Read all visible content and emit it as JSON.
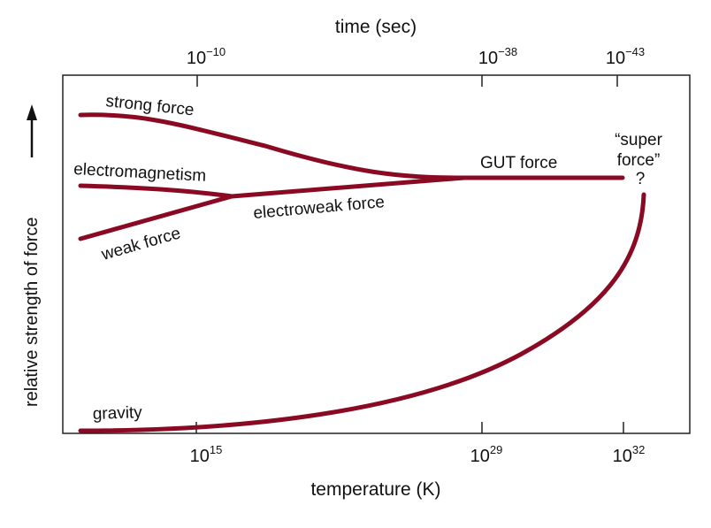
{
  "chart_data": {
    "type": "line",
    "title": "",
    "top_axis": {
      "label": "time (sec)",
      "ticks": [
        {
          "base": "10",
          "exp": "−10"
        },
        {
          "base": "10",
          "exp": "−38"
        },
        {
          "base": "10",
          "exp": "−43"
        }
      ]
    },
    "bottom_axis": {
      "label": "temperature (K)",
      "ticks": [
        {
          "base": "10",
          "exp": "15"
        },
        {
          "base": "10",
          "exp": "29"
        },
        {
          "base": "10",
          "exp": "32"
        }
      ]
    },
    "ylabel": "relative strength of force",
    "series": [
      {
        "name": "strong force",
        "label": "strong force"
      },
      {
        "name": "electromagnetism",
        "label": "electromagnetism"
      },
      {
        "name": "weak force",
        "label": "weak force"
      },
      {
        "name": "electroweak force",
        "label": "electroweak force"
      },
      {
        "name": "GUT force",
        "label": "GUT force"
      },
      {
        "name": "gravity",
        "label": "gravity"
      }
    ],
    "annotations": {
      "super_line1": "“super",
      "super_line2": "force”",
      "question": "?"
    },
    "color": "#8b0a23"
  }
}
